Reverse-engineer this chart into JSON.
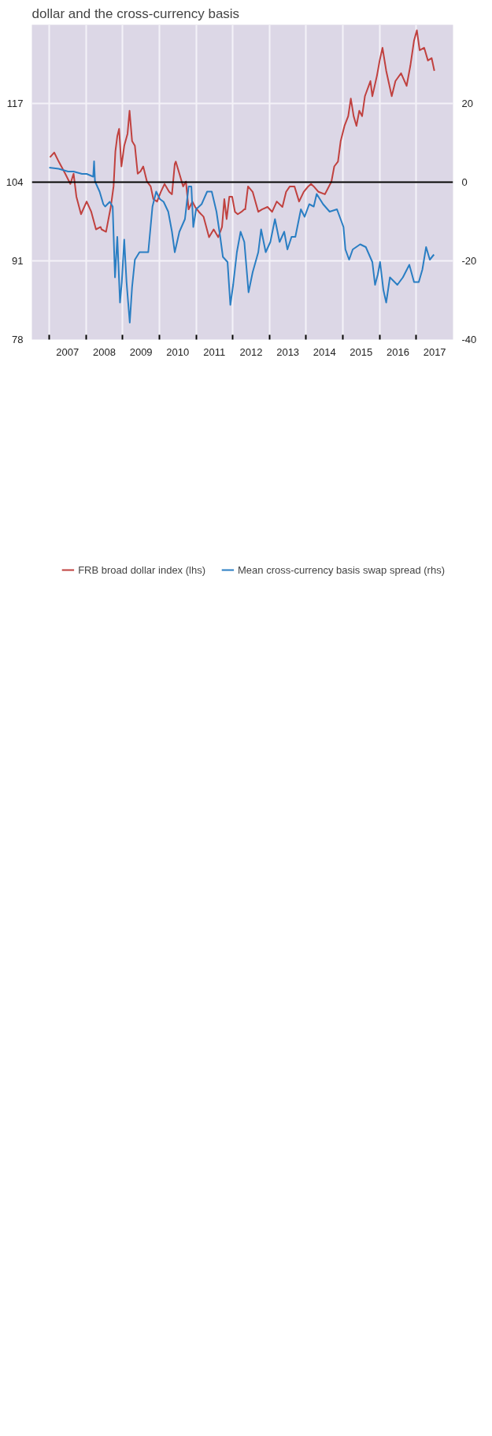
{
  "chart_data": {
    "type": "line",
    "title": "dollar and the cross-currency basis",
    "xlim": [
      "2006-07-12",
      "2018-01-01"
    ],
    "xticks": [
      {
        "value": "2007-01-01",
        "label": null
      },
      {
        "value": "2007-07-02",
        "label": "2007"
      },
      {
        "value": "2008-01-01",
        "label": null
      },
      {
        "value": "2008-07-02",
        "label": "2008"
      },
      {
        "value": "2009-01-01",
        "label": null
      },
      {
        "value": "2009-07-02",
        "label": "2009"
      },
      {
        "value": "2010-01-01",
        "label": null
      },
      {
        "value": "2010-07-02",
        "label": "2010"
      },
      {
        "value": "2011-01-01",
        "label": null
      },
      {
        "value": "2011-07-02",
        "label": "2011"
      },
      {
        "value": "2012-01-01",
        "label": null
      },
      {
        "value": "2012-07-02",
        "label": "2012"
      },
      {
        "value": "2013-01-01",
        "label": null
      },
      {
        "value": "2013-07-02",
        "label": "2013"
      },
      {
        "value": "2014-01-01",
        "label": null
      },
      {
        "value": "2014-07-02",
        "label": "2014"
      },
      {
        "value": "2015-01-01",
        "label": null
      },
      {
        "value": "2015-07-02",
        "label": "2015"
      },
      {
        "value": "2016-01-01",
        "label": null
      },
      {
        "value": "2016-07-02",
        "label": "2016"
      },
      {
        "value": "2017-01-01",
        "label": null
      },
      {
        "value": "2017-07-02",
        "label": "2017"
      }
    ],
    "ylim": [
      78,
      130
    ],
    "yticks": [
      78,
      91,
      104,
      117
    ],
    "y2lim": [
      -40,
      40
    ],
    "y2ticks": [
      -40,
      -20,
      0,
      20
    ],
    "grid": true,
    "legend": "bottom",
    "ref_lines": [
      {
        "axis": "y2",
        "value": 0,
        "color": "#000000"
      }
    ],
    "series": [
      {
        "name": "FRB broad dollar index (lhs)",
        "color": "#c0413f",
        "x": [
          "2007-01-08",
          "2007-02-19",
          "2007-04-05",
          "2007-06-09",
          "2007-07-30",
          "2007-08-31",
          "2007-09-28",
          "2007-11-13",
          "2008-01-08",
          "2008-02-23",
          "2008-04-10",
          "2008-05-26",
          "2008-06-04",
          "2008-07-19",
          "2008-09-04",
          "2008-10-02",
          "2008-10-20",
          "2008-11-08",
          "2008-11-26",
          "2008-12-19",
          "2009-01-16",
          "2009-02-18",
          "2009-03-10",
          "2009-04-04",
          "2009-05-02",
          "2009-05-30",
          "2009-06-27",
          "2009-07-24",
          "2009-08-30",
          "2009-10-06",
          "2009-11-02",
          "2009-12-09",
          "2010-01-15",
          "2010-02-21",
          "2010-04-08",
          "2010-05-06",
          "2010-06-03",
          "2010-06-13",
          "2010-07-19",
          "2010-08-25",
          "2010-09-22",
          "2010-10-19",
          "2010-11-25",
          "2010-12-23",
          "2011-01-29",
          "2011-03-16",
          "2011-05-10",
          "2011-06-25",
          "2011-08-10",
          "2011-09-16",
          "2011-10-09",
          "2011-11-01",
          "2011-11-28",
          "2011-12-26",
          "2012-01-23",
          "2012-02-20",
          "2012-03-28",
          "2012-04-25",
          "2012-05-04",
          "2012-06-01",
          "2012-07-17",
          "2012-09-11",
          "2012-10-18",
          "2012-12-12",
          "2013-01-27",
          "2013-03-14",
          "2013-05-09",
          "2013-06-15",
          "2013-07-22",
          "2013-09-06",
          "2013-10-22",
          "2013-12-07",
          "2014-01-21",
          "2014-02-18",
          "2014-03-17",
          "2014-05-03",
          "2014-07-06",
          "2014-09-09",
          "2014-10-07",
          "2014-11-13",
          "2014-12-10",
          "2015-01-17",
          "2015-02-23",
          "2015-03-21",
          "2015-04-18",
          "2015-05-16",
          "2015-06-13",
          "2015-07-11",
          "2015-08-08",
          "2015-10-02",
          "2015-10-21",
          "2015-12-06",
          "2016-01-02",
          "2016-01-30",
          "2016-03-07",
          "2016-05-01",
          "2016-06-07",
          "2016-08-02",
          "2016-09-26",
          "2016-11-02",
          "2016-12-09",
          "2017-01-06",
          "2017-02-03",
          "2017-03-20",
          "2017-04-26",
          "2017-06-02",
          "2017-06-29"
        ],
        "values": [
          108.1,
          108.9,
          107.4,
          105.4,
          103.7,
          105.4,
          101.6,
          98.7,
          100.8,
          99.1,
          96.2,
          96.6,
          96.2,
          95.8,
          99.9,
          103.3,
          109.1,
          111.6,
          112.8,
          106.6,
          110.0,
          112.0,
          115.8,
          110.8,
          110.0,
          105.4,
          105.8,
          106.6,
          104.1,
          103.3,
          101.2,
          100.8,
          102.4,
          103.7,
          102.4,
          102.0,
          107.0,
          107.4,
          105.4,
          103.3,
          104.1,
          99.5,
          100.8,
          99.9,
          99.1,
          98.3,
          94.9,
          96.2,
          94.9,
          96.6,
          101.2,
          97.9,
          101.6,
          101.6,
          99.1,
          98.7,
          99.1,
          99.5,
          99.5,
          103.3,
          102.4,
          99.1,
          99.5,
          99.9,
          99.1,
          100.8,
          99.9,
          102.4,
          103.3,
          103.3,
          100.8,
          102.4,
          103.3,
          103.7,
          103.3,
          102.4,
          102.0,
          104.1,
          106.6,
          107.4,
          110.8,
          113.3,
          114.9,
          117.8,
          114.9,
          113.3,
          115.8,
          114.9,
          118.2,
          120.7,
          118.2,
          121.6,
          124.1,
          126.2,
          122.4,
          118.2,
          120.7,
          122.0,
          119.9,
          123.2,
          127.4,
          129.1,
          125.8,
          126.2,
          124.1,
          124.5,
          122.4
        ]
      },
      {
        "name": "Mean cross-currency basis swap spread (rhs)",
        "color": "#2a7ec3",
        "axis": "y2",
        "x": [
          "2007-01-01",
          "2007-04-05",
          "2007-07-07",
          "2007-08-31",
          "2007-11-23",
          "2008-01-08",
          "2008-03-13",
          "2008-03-22",
          "2008-03-31",
          "2008-05-16",
          "2008-06-22",
          "2008-07-10",
          "2008-08-25",
          "2008-09-23",
          "2008-10-16",
          "2008-11-08",
          "2008-12-05",
          "2008-12-23",
          "2009-01-16",
          "2009-02-08",
          "2009-03-12",
          "2009-04-04",
          "2009-05-02",
          "2009-06-17",
          "2009-09-12",
          "2009-10-24",
          "2009-11-30",
          "2010-01-06",
          "2010-02-12",
          "2010-03-30",
          "2010-05-06",
          "2010-06-03",
          "2010-07-19",
          "2010-09-12",
          "2010-10-19",
          "2010-11-15",
          "2010-12-04",
          "2011-01-01",
          "2011-02-25",
          "2011-04-21",
          "2011-06-06",
          "2011-07-23",
          "2011-08-29",
          "2011-09-25",
          "2011-11-10",
          "2011-12-08",
          "2012-01-05",
          "2012-02-11",
          "2012-03-19",
          "2012-04-25",
          "2012-06-06",
          "2012-07-17",
          "2012-09-11",
          "2012-10-09",
          "2012-11-24",
          "2013-01-09",
          "2013-02-24",
          "2013-04-11",
          "2013-05-27",
          "2013-06-28",
          "2013-08-08",
          "2013-09-15",
          "2013-11-09",
          "2013-12-16",
          "2014-01-31",
          "2014-03-17",
          "2014-04-15",
          "2014-06-18",
          "2014-08-22",
          "2014-11-03",
          "2015-01-07",
          "2015-01-26",
          "2015-03-04",
          "2015-04-09",
          "2015-06-22",
          "2015-08-17",
          "2015-10-21",
          "2015-11-17",
          "2015-12-14",
          "2016-01-06",
          "2016-02-08",
          "2016-03-07",
          "2016-04-13",
          "2016-06-26",
          "2016-08-20",
          "2016-10-23",
          "2016-12-09",
          "2017-01-25",
          "2017-03-02",
          "2017-04-08",
          "2017-05-15",
          "2017-06-25"
        ],
        "values": [
          3.7,
          3.4,
          2.7,
          2.7,
          2.1,
          2.1,
          1.4,
          5.3,
          0.2,
          -2.4,
          -5.6,
          -6.2,
          -5.0,
          -6.2,
          -24.2,
          -13.9,
          -30.6,
          -25.4,
          -14.6,
          -25.4,
          -35.7,
          -26.7,
          -19.7,
          -17.8,
          -17.8,
          -6.2,
          -2.4,
          -4.3,
          -5.0,
          -7.5,
          -12.6,
          -17.8,
          -12.6,
          -9.4,
          -1.1,
          -1.1,
          -11.4,
          -6.9,
          -5.6,
          -2.4,
          -2.4,
          -7.5,
          -13.9,
          -19.0,
          -20.3,
          -31.2,
          -26.1,
          -17.8,
          -12.6,
          -15.2,
          -28.0,
          -22.9,
          -17.8,
          -12.0,
          -17.8,
          -15.2,
          -9.4,
          -15.2,
          -12.6,
          -17.1,
          -13.9,
          -13.9,
          -6.9,
          -8.8,
          -5.6,
          -6.2,
          -3.0,
          -5.6,
          -7.5,
          -6.9,
          -11.4,
          -17.1,
          -19.7,
          -17.1,
          -15.8,
          -16.5,
          -20.3,
          -26.1,
          -23.5,
          -20.3,
          -27.4,
          -30.6,
          -24.2,
          -26.1,
          -24.2,
          -21.0,
          -25.4,
          -25.4,
          -22.2,
          -16.5,
          -19.7,
          -18.4
        ]
      }
    ]
  }
}
